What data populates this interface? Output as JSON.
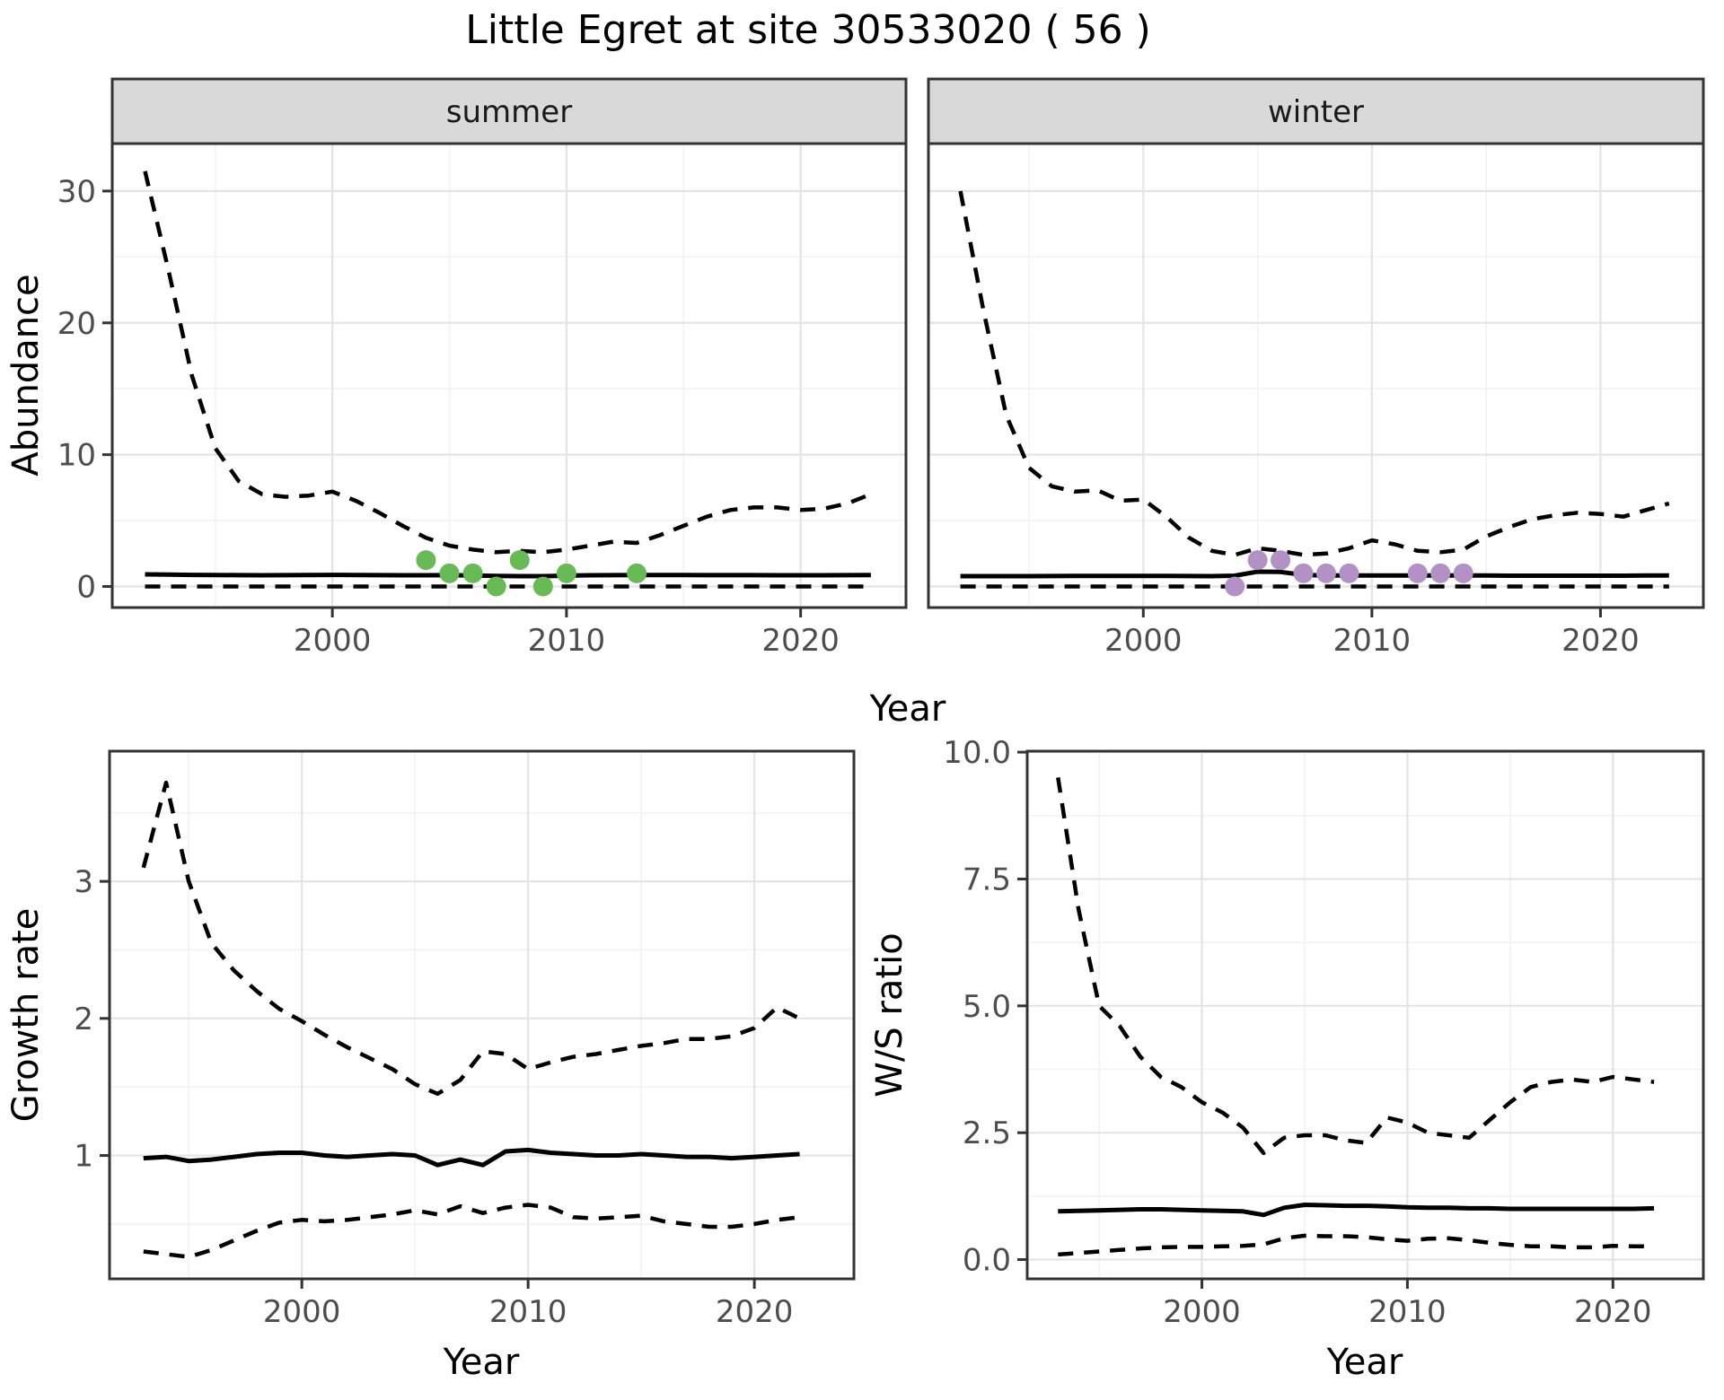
{
  "title": "Little Egret at site 30533020 ( 56 )",
  "labels": {
    "abundance": "Abundance",
    "year": "Year",
    "growth": "Growth rate",
    "ws": "W/S ratio"
  },
  "colors": {
    "summer_points": "#67ba55",
    "winter_points": "#b291c5",
    "line": "#000000",
    "strip_bg": "#d9d9d9",
    "strip_border": "#333333",
    "panel_border": "#333333",
    "grid_major": "#e4e4e4",
    "grid_minor": "#f2f2f2",
    "tick_text": "#4d4d4d",
    "tick_mark": "#333333"
  },
  "chart_data": [
    {
      "id": "abundance-summer",
      "type": "line",
      "facet_label": "summer",
      "ylabel": "Abundance",
      "xlabel": "Year",
      "xlim": [
        1990.6,
        2024.5
      ],
      "ylim": [
        -1.6,
        33.6
      ],
      "xticks": [
        2000,
        2010,
        2020
      ],
      "xtick_labels": [
        "2000",
        "2010",
        "2020"
      ],
      "xminor": [
        1995,
        2005,
        2015
      ],
      "yticks": [
        0,
        10,
        20,
        30
      ],
      "ytick_labels": [
        "0",
        "10",
        "20",
        "30"
      ],
      "yminor": [
        5,
        15,
        25
      ],
      "grid": true,
      "legend": "none",
      "x": [
        1992,
        1993,
        1994,
        1995,
        1996,
        1997,
        1998,
        1999,
        2000,
        2001,
        2002,
        2003,
        2004,
        2005,
        2006,
        2007,
        2008,
        2009,
        2010,
        2011,
        2012,
        2013,
        2014,
        2015,
        2016,
        2017,
        2018,
        2019,
        2020,
        2021,
        2022,
        2023
      ],
      "series": [
        {
          "name": "upper_ci",
          "style": "dashed",
          "values": [
            31.5,
            24,
            16,
            10.5,
            8.0,
            7.0,
            6.8,
            6.9,
            7.2,
            6.5,
            5.6,
            4.6,
            3.7,
            3.1,
            2.8,
            2.6,
            2.7,
            2.6,
            2.8,
            3.1,
            3.4,
            3.3,
            3.9,
            4.6,
            5.3,
            5.8,
            6.0,
            6.0,
            5.8,
            5.9,
            6.3,
            7.0
          ]
        },
        {
          "name": "lower_ci",
          "style": "dashed",
          "values": [
            0,
            0,
            0,
            0,
            0,
            0,
            0,
            0,
            0,
            0,
            0,
            0,
            0,
            0,
            0,
            0,
            0,
            0,
            0,
            0,
            0,
            0,
            0,
            0,
            0,
            0,
            0,
            0,
            0,
            0,
            0,
            0
          ]
        },
        {
          "name": "median",
          "style": "solid",
          "values": [
            0.92,
            0.9,
            0.88,
            0.87,
            0.86,
            0.85,
            0.86,
            0.87,
            0.88,
            0.87,
            0.86,
            0.85,
            0.85,
            0.86,
            0.84,
            0.8,
            0.78,
            0.78,
            0.82,
            0.85,
            0.86,
            0.87,
            0.87,
            0.87,
            0.86,
            0.86,
            0.86,
            0.85,
            0.85,
            0.85,
            0.86,
            0.87
          ]
        }
      ],
      "points": {
        "name": "observed-counts-summer",
        "color_key": "summer_points",
        "x": [
          2004,
          2005,
          2006,
          2007,
          2008,
          2009,
          2010,
          2013
        ],
        "y": [
          2,
          1,
          1,
          0,
          2,
          0,
          1,
          1
        ]
      }
    },
    {
      "id": "abundance-winter",
      "type": "line",
      "facet_label": "winter",
      "ylabel": "Abundance",
      "xlabel": "Year",
      "xlim": [
        1990.6,
        2024.5
      ],
      "ylim": [
        -1.6,
        33.6
      ],
      "xticks": [
        2000,
        2010,
        2020
      ],
      "xtick_labels": [
        "2000",
        "2010",
        "2020"
      ],
      "xminor": [
        1995,
        2005,
        2015
      ],
      "yticks": [
        0,
        10,
        20,
        30
      ],
      "ytick_labels": [],
      "yminor": [
        5,
        15,
        25
      ],
      "grid": true,
      "legend": "none",
      "x": [
        1992,
        1993,
        1994,
        1995,
        1996,
        1997,
        1998,
        1999,
        2000,
        2001,
        2002,
        2003,
        2004,
        2005,
        2006,
        2007,
        2008,
        2009,
        2010,
        2011,
        2012,
        2013,
        2014,
        2015,
        2016,
        2017,
        2018,
        2019,
        2020,
        2021,
        2022,
        2023
      ],
      "series": [
        {
          "name": "upper_ci",
          "style": "dashed",
          "values": [
            30,
            21,
            13,
            9,
            7.6,
            7.2,
            7.3,
            6.5,
            6.6,
            5.3,
            3.7,
            2.7,
            2.4,
            2.9,
            2.7,
            2.4,
            2.5,
            2.9,
            3.5,
            3.2,
            2.7,
            2.6,
            2.8,
            3.8,
            4.5,
            5.1,
            5.4,
            5.6,
            5.5,
            5.3,
            5.8,
            6.3
          ]
        },
        {
          "name": "lower_ci",
          "style": "dashed",
          "values": [
            0,
            0,
            0,
            0,
            0,
            0,
            0,
            0,
            0,
            0,
            0,
            0,
            0,
            0,
            0,
            0,
            0,
            0,
            0,
            0,
            0,
            0,
            0,
            0,
            0,
            0,
            0,
            0,
            0,
            0,
            0,
            0
          ]
        },
        {
          "name": "median",
          "style": "solid",
          "values": [
            0.78,
            0.78,
            0.78,
            0.78,
            0.79,
            0.8,
            0.8,
            0.8,
            0.8,
            0.8,
            0.79,
            0.78,
            0.82,
            1.12,
            1.1,
            0.88,
            0.84,
            0.83,
            0.83,
            0.83,
            0.83,
            0.83,
            0.83,
            0.83,
            0.82,
            0.82,
            0.82,
            0.82,
            0.82,
            0.82,
            0.83,
            0.84
          ]
        }
      ],
      "points": {
        "name": "observed-counts-winter",
        "color_key": "winter_points",
        "x": [
          2004,
          2005,
          2006,
          2007,
          2008,
          2009,
          2012,
          2013,
          2014
        ],
        "y": [
          0,
          2,
          2,
          1,
          1,
          1,
          1,
          1,
          1
        ]
      }
    },
    {
      "id": "growth-rate",
      "type": "line",
      "facet_label": "",
      "ylabel": "Growth rate",
      "xlabel": "Year",
      "xlim": [
        1991.5,
        2024.4
      ],
      "ylim": [
        0.1,
        3.95
      ],
      "xticks": [
        2000,
        2010,
        2020
      ],
      "xtick_labels": [
        "2000",
        "2010",
        "2020"
      ],
      "xminor": [
        1995,
        2005,
        2015
      ],
      "yticks": [
        1,
        2,
        3
      ],
      "ytick_labels": [
        "1",
        "2",
        "3"
      ],
      "yminor": [
        0.5,
        1.5,
        2.5,
        3.5
      ],
      "grid": true,
      "legend": "none",
      "x": [
        1993,
        1994,
        1995,
        1996,
        1997,
        1998,
        1999,
        2000,
        2001,
        2002,
        2003,
        2004,
        2005,
        2006,
        2007,
        2008,
        2009,
        2010,
        2011,
        2012,
        2013,
        2014,
        2015,
        2016,
        2017,
        2018,
        2019,
        2020,
        2021,
        2022
      ],
      "series": [
        {
          "name": "upper_ci",
          "style": "dashed",
          "values": [
            3.1,
            3.72,
            3.0,
            2.55,
            2.35,
            2.2,
            2.07,
            1.98,
            1.88,
            1.79,
            1.71,
            1.63,
            1.52,
            1.45,
            1.55,
            1.76,
            1.74,
            1.63,
            1.68,
            1.72,
            1.74,
            1.77,
            1.8,
            1.82,
            1.85,
            1.85,
            1.87,
            1.93,
            2.08,
            2.0
          ]
        },
        {
          "name": "lower_ci",
          "style": "dashed",
          "values": [
            0.3,
            0.28,
            0.26,
            0.31,
            0.38,
            0.45,
            0.51,
            0.53,
            0.52,
            0.53,
            0.55,
            0.57,
            0.6,
            0.57,
            0.63,
            0.58,
            0.62,
            0.64,
            0.62,
            0.55,
            0.54,
            0.55,
            0.56,
            0.52,
            0.5,
            0.48,
            0.48,
            0.5,
            0.53,
            0.55
          ]
        },
        {
          "name": "median",
          "style": "solid",
          "values": [
            0.98,
            0.99,
            0.96,
            0.97,
            0.99,
            1.01,
            1.02,
            1.02,
            1.0,
            0.99,
            1.0,
            1.01,
            1.0,
            0.93,
            0.97,
            0.93,
            1.03,
            1.04,
            1.02,
            1.01,
            1.0,
            1.0,
            1.01,
            1.0,
            0.99,
            0.99,
            0.98,
            0.99,
            1.0,
            1.01
          ]
        }
      ],
      "points": null
    },
    {
      "id": "ws-ratio",
      "type": "line",
      "facet_label": "",
      "ylabel": "W/S ratio",
      "xlabel": "Year",
      "xlim": [
        1991.5,
        2024.4
      ],
      "ylim": [
        -0.38,
        10.02
      ],
      "xticks": [
        2000,
        2010,
        2020
      ],
      "xtick_labels": [
        "2000",
        "2010",
        "2020"
      ],
      "xminor": [
        1995,
        2005,
        2015
      ],
      "yticks": [
        0,
        2.5,
        5,
        7.5,
        10
      ],
      "ytick_labels": [
        "0.0",
        "2.5",
        "5.0",
        "7.5",
        "10.0"
      ],
      "yminor": [
        1.25,
        3.75,
        6.25,
        8.75
      ],
      "grid": true,
      "legend": "none",
      "x": [
        1993,
        1994,
        1995,
        1996,
        1997,
        1998,
        1999,
        2000,
        2001,
        2002,
        2003,
        2004,
        2005,
        2006,
        2007,
        2008,
        2009,
        2010,
        2011,
        2012,
        2013,
        2014,
        2015,
        2016,
        2017,
        2018,
        2019,
        2020,
        2021,
        2022
      ],
      "series": [
        {
          "name": "upper_ci",
          "style": "dashed",
          "values": [
            9.5,
            6.9,
            5.0,
            4.6,
            4.0,
            3.6,
            3.4,
            3.1,
            2.9,
            2.6,
            2.1,
            2.4,
            2.45,
            2.45,
            2.35,
            2.3,
            2.8,
            2.7,
            2.5,
            2.45,
            2.4,
            2.75,
            3.1,
            3.4,
            3.5,
            3.55,
            3.5,
            3.6,
            3.55,
            3.5
          ]
        },
        {
          "name": "lower_ci",
          "style": "dashed",
          "values": [
            0.1,
            0.13,
            0.16,
            0.19,
            0.22,
            0.24,
            0.25,
            0.25,
            0.26,
            0.27,
            0.3,
            0.42,
            0.47,
            0.46,
            0.46,
            0.44,
            0.4,
            0.37,
            0.41,
            0.42,
            0.38,
            0.33,
            0.29,
            0.26,
            0.26,
            0.24,
            0.24,
            0.27,
            0.26,
            0.26
          ]
        },
        {
          "name": "median",
          "style": "solid",
          "values": [
            0.95,
            0.96,
            0.97,
            0.98,
            0.99,
            0.99,
            0.98,
            0.97,
            0.96,
            0.95,
            0.88,
            1.02,
            1.08,
            1.07,
            1.06,
            1.06,
            1.05,
            1.03,
            1.02,
            1.02,
            1.01,
            1.01,
            1.0,
            1.0,
            1.0,
            1.0,
            1.0,
            1.0,
            1.0,
            1.01
          ]
        }
      ],
      "points": null
    }
  ]
}
